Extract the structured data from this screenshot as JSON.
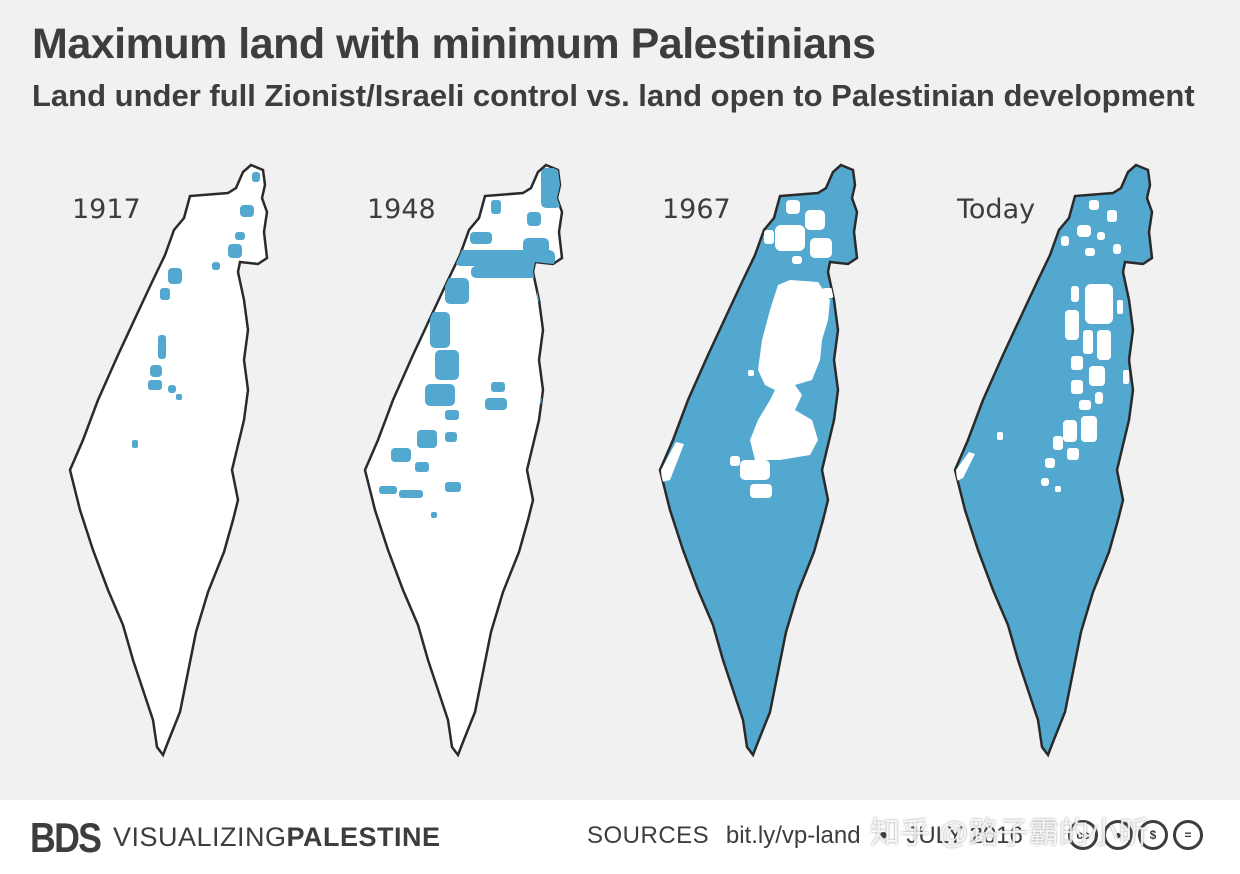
{
  "header": {
    "title": "Maximum land with minimum Palestinians",
    "subtitle": "Land under full Zionist/Israeli control vs. land open to Palestinian development"
  },
  "maps": [
    {
      "label": "1917",
      "fill_level": "minimal"
    },
    {
      "label": "1948",
      "fill_level": "partial"
    },
    {
      "label": "1967",
      "fill_level": "mostly"
    },
    {
      "label": "Today",
      "fill_level": "nearly-all"
    }
  ],
  "colors": {
    "controlled": "#52a8ce",
    "open": "#ffffff",
    "outline": "#2a2a2a",
    "background": "#f1f1f1",
    "text": "#3d3d3d"
  },
  "footer": {
    "logo": "BDS",
    "brand_light": "VISUALIZING",
    "brand_bold": "PALESTINE",
    "sources_label": "SOURCES",
    "sources_link": "bit.ly/vp-land",
    "separator": "•",
    "date": "JULY 2016",
    "license_icons": [
      "cc-icon",
      "by-icon",
      "nc-icon",
      "nd-icon"
    ],
    "watermark": "知乎 @路子霸的小昕"
  }
}
